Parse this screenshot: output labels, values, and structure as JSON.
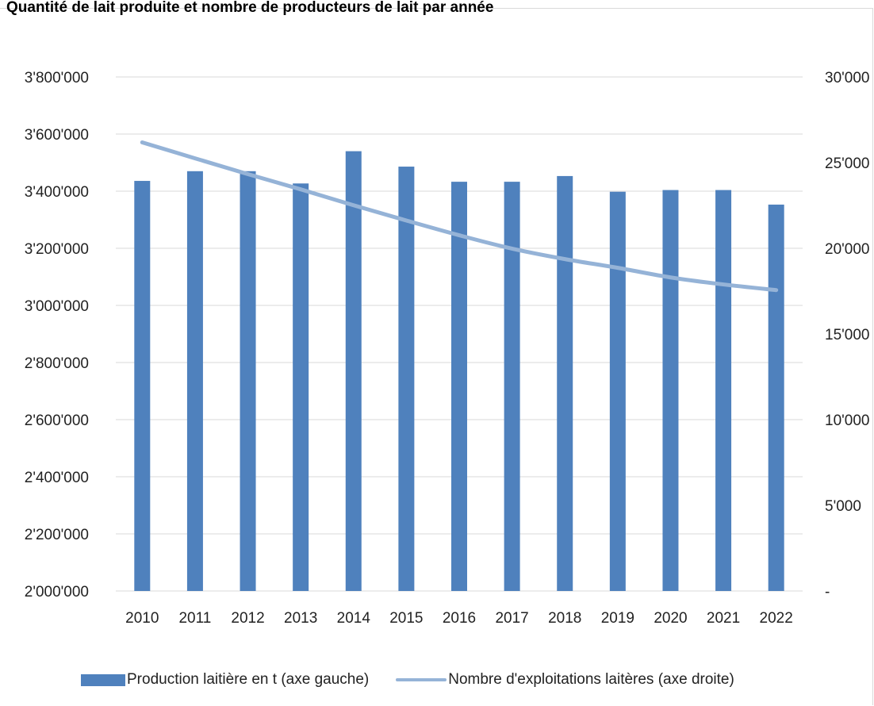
{
  "chart_data": {
    "type": "bar",
    "title": "Quantité de lait produite et nombre de producteurs de lait par année",
    "categories": [
      "2010",
      "2011",
      "2012",
      "2013",
      "2014",
      "2015",
      "2016",
      "2017",
      "2018",
      "2019",
      "2020",
      "2021",
      "2022"
    ],
    "series": [
      {
        "name": "Production laitière en t (axe gauche)",
        "type": "bar",
        "axis": "left",
        "color": "#4f81bd",
        "values": [
          3436000,
          3470000,
          3470000,
          3427000,
          3540000,
          3486000,
          3433000,
          3433000,
          3453000,
          3398000,
          3404000,
          3404000,
          3353000
        ]
      },
      {
        "name": "Nombre d'exploitations laitères (axe droite)",
        "type": "line",
        "axis": "right",
        "color": "#95b3d7",
        "values": [
          26180,
          25250,
          24330,
          23440,
          22510,
          21620,
          20760,
          19980,
          19370,
          18860,
          18300,
          17890,
          17560
        ]
      }
    ],
    "y_left": {
      "range": [
        2000000,
        3800000
      ],
      "ticks": [
        2000000,
        2200000,
        2400000,
        2600000,
        2800000,
        3000000,
        3200000,
        3400000,
        3600000,
        3800000
      ],
      "tick_labels": [
        "2'000'000",
        "2'200'000",
        "2'400'000",
        "2'600'000",
        "2'800'000",
        "3'000'000",
        "3'200'000",
        "3'400'000",
        "3'600'000",
        "3'800'000"
      ]
    },
    "y_right": {
      "range": [
        0,
        30000
      ],
      "ticks": [
        0,
        5000,
        10000,
        15000,
        20000,
        25000,
        30000
      ],
      "tick_labels": [
        "-",
        "5'000",
        "10'000",
        "15'000",
        "20'000",
        "25'000",
        "30'000"
      ]
    },
    "grid": true,
    "legend": "bottom"
  }
}
